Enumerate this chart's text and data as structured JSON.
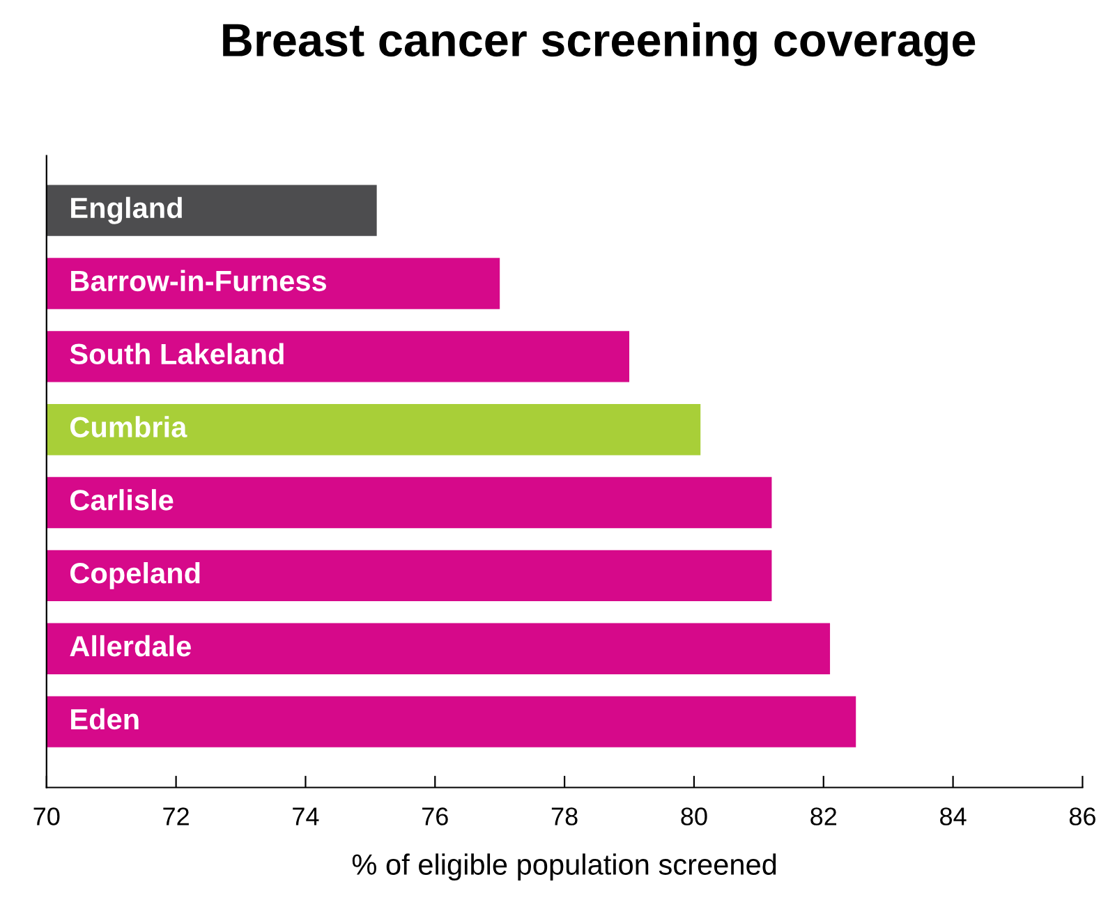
{
  "chart_data": {
    "type": "bar",
    "orientation": "horizontal",
    "title": "Breast cancer screening coverage",
    "xlabel": "% of eligible population screened",
    "categories": [
      "England",
      "Barrow-in-Furness",
      "South Lakeland",
      "Cumbria",
      "Carlisle",
      "Copeland",
      "Allerdale",
      "Eden"
    ],
    "values": [
      75.1,
      77.0,
      79.0,
      80.1,
      81.2,
      81.2,
      82.1,
      82.5
    ],
    "colors": [
      "#4d4d4f",
      "#d6098a",
      "#d6098a",
      "#a8cf38",
      "#d6098a",
      "#d6098a",
      "#d6098a",
      "#d6098a"
    ],
    "xlim": [
      70,
      86
    ],
    "xticks": [
      70,
      72,
      74,
      76,
      78,
      80,
      82,
      84,
      86
    ],
    "grid": false,
    "legend": false
  }
}
